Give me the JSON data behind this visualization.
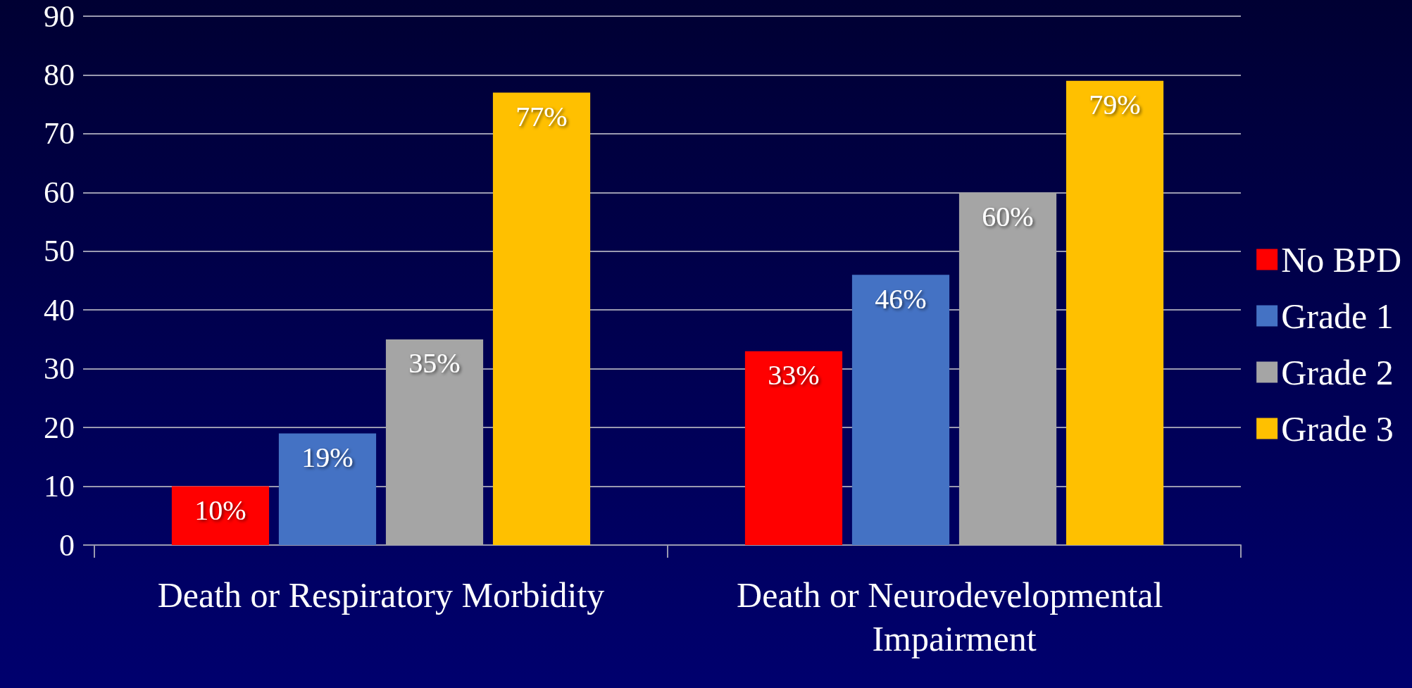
{
  "chart_data": {
    "type": "bar",
    "categories": [
      "Death or Respiratory Morbidity",
      "Death or Neurodevelopmental Impairment"
    ],
    "series": [
      {
        "name": "No BPD",
        "color": "#ff0000",
        "values": [
          10,
          33
        ],
        "value_labels": [
          "10%",
          "33%"
        ]
      },
      {
        "name": "Grade 1",
        "color": "#4472c4",
        "values": [
          19,
          46
        ],
        "value_labels": [
          "19%",
          "46%"
        ]
      },
      {
        "name": "Grade 2",
        "color": "#a5a5a5",
        "values": [
          35,
          60
        ],
        "value_labels": [
          "35%",
          "60%"
        ]
      },
      {
        "name": "Grade 3",
        "color": "#ffc000",
        "values": [
          77,
          79
        ],
        "value_labels": [
          "77%",
          "79%"
        ]
      }
    ],
    "ylim": [
      0,
      90
    ],
    "yticks": [
      0,
      10,
      20,
      30,
      40,
      50,
      60,
      70,
      80,
      90
    ],
    "grid": "y",
    "legend": "right"
  }
}
